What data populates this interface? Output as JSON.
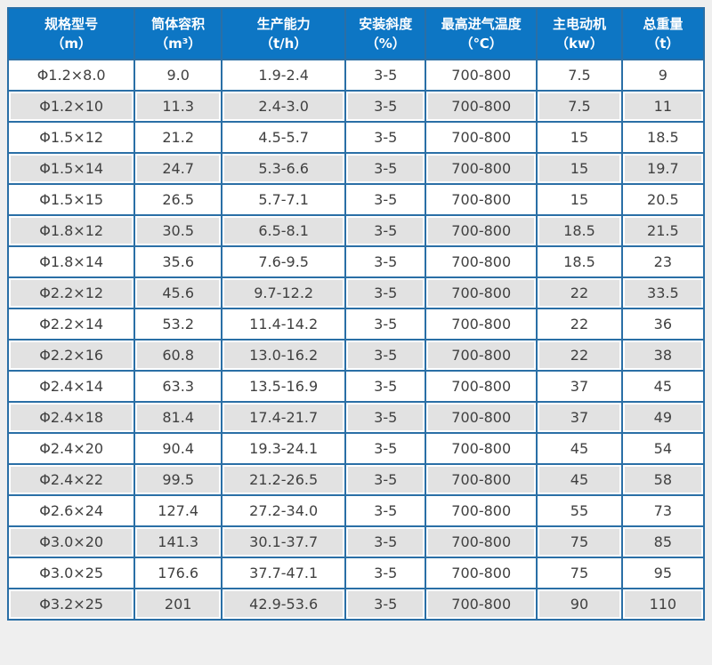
{
  "theme": {
    "page_bg": "#efefef",
    "header_bg": "#0d76c4",
    "header_text": "#ffffff",
    "border": "#2a6fa6",
    "stripe_bg": "#e2e2e2",
    "row_bg": "#ffffff",
    "cell_text": "#404040"
  },
  "chart_data": {
    "type": "table",
    "columns": [
      {
        "key": "spec-model",
        "title": "规格型号",
        "unit": "（m）",
        "width": "18.2%"
      },
      {
        "key": "cylinder-volume",
        "title": "筒体容积",
        "unit": "（m³）",
        "width": "12.5%"
      },
      {
        "key": "production-capacity",
        "title": "生产能力",
        "unit": "（t/h）",
        "width": "17.8%"
      },
      {
        "key": "installation-slope",
        "title": "安装斜度",
        "unit": "（%）",
        "width": "11.5%"
      },
      {
        "key": "max-inlet-air-temp",
        "title": "最高进气温度",
        "unit": "（℃）",
        "width": "16.0%"
      },
      {
        "key": "main-motor",
        "title": "主电动机",
        "unit": "（kw）",
        "width": "12.2%"
      },
      {
        "key": "total-weight",
        "title": "总重量",
        "unit": "（t）",
        "width": "11.8%"
      }
    ],
    "rows": [
      [
        "Φ1.2×8.0",
        "9.0",
        "1.9-2.4",
        "3-5",
        "700-800",
        "7.5",
        "9"
      ],
      [
        "Φ1.2×10",
        "11.3",
        "2.4-3.0",
        "3-5",
        "700-800",
        "7.5",
        "11"
      ],
      [
        "Φ1.5×12",
        "21.2",
        "4.5-5.7",
        "3-5",
        "700-800",
        "15",
        "18.5"
      ],
      [
        "Φ1.5×14",
        "24.7",
        "5.3-6.6",
        "3-5",
        "700-800",
        "15",
        "19.7"
      ],
      [
        "Φ1.5×15",
        "26.5",
        "5.7-7.1",
        "3-5",
        "700-800",
        "15",
        "20.5"
      ],
      [
        "Φ1.8×12",
        "30.5",
        "6.5-8.1",
        "3-5",
        "700-800",
        "18.5",
        "21.5"
      ],
      [
        "Φ1.8×14",
        "35.6",
        "7.6-9.5",
        "3-5",
        "700-800",
        "18.5",
        "23"
      ],
      [
        "Φ2.2×12",
        "45.6",
        "9.7-12.2",
        "3-5",
        "700-800",
        "22",
        "33.5"
      ],
      [
        "Φ2.2×14",
        "53.2",
        "11.4-14.2",
        "3-5",
        "700-800",
        "22",
        "36"
      ],
      [
        "Φ2.2×16",
        "60.8",
        "13.0-16.2",
        "3-5",
        "700-800",
        "22",
        "38"
      ],
      [
        "Φ2.4×14",
        "63.3",
        "13.5-16.9",
        "3-5",
        "700-800",
        "37",
        "45"
      ],
      [
        "Φ2.4×18",
        "81.4",
        "17.4-21.7",
        "3-5",
        "700-800",
        "37",
        "49"
      ],
      [
        "Φ2.4×20",
        "90.4",
        "19.3-24.1",
        "3-5",
        "700-800",
        "45",
        "54"
      ],
      [
        "Φ2.4×22",
        "99.5",
        "21.2-26.5",
        "3-5",
        "700-800",
        "45",
        "58"
      ],
      [
        "Φ2.6×24",
        "127.4",
        "27.2-34.0",
        "3-5",
        "700-800",
        "55",
        "73"
      ],
      [
        "Φ3.0×20",
        "141.3",
        "30.1-37.7",
        "3-5",
        "700-800",
        "75",
        "85"
      ],
      [
        "Φ3.0×25",
        "176.6",
        "37.7-47.1",
        "3-5",
        "700-800",
        "75",
        "95"
      ],
      [
        "Φ3.2×25",
        "201",
        "42.9-53.6",
        "3-5",
        "700-800",
        "90",
        "110"
      ]
    ]
  }
}
